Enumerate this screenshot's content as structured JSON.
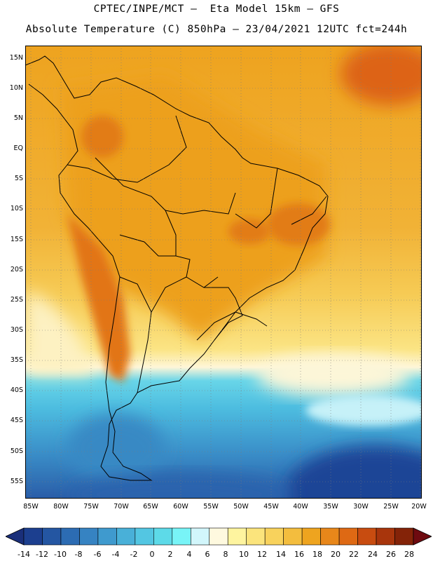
{
  "header": {
    "title_line1": "CPTEC/INPE/MCT –  Eta Model 15km – GFS",
    "title_line2": "Absolute Temperature (C) 850hPa – 23/04/2021 12UTC fct=244h"
  },
  "map": {
    "region": "South America",
    "variable": "Absolute Temperature (C)",
    "level": "850hPa",
    "latitude_labels": [
      "15N",
      "10N",
      "5N",
      "EQ",
      "5S",
      "10S",
      "15S",
      "20S",
      "25S",
      "30S",
      "35S",
      "40S",
      "45S",
      "50S",
      "55S"
    ],
    "longitude_labels": [
      "85W",
      "80W",
      "75W",
      "70W",
      "65W",
      "60W",
      "55W",
      "50W",
      "45W",
      "40W",
      "35W",
      "30W",
      "25W",
      "20W"
    ]
  },
  "colorbar": {
    "tick_labels": [
      "-14",
      "-12",
      "-10",
      "-8",
      "-6",
      "-4",
      "-2",
      "0",
      "2",
      "4",
      "6",
      "8",
      "10",
      "12",
      "14",
      "16",
      "18",
      "20",
      "22",
      "24",
      "26",
      "28"
    ],
    "colors": [
      "#1c3f8f",
      "#2456a2",
      "#2c6cb3",
      "#3683c2",
      "#3f9ace",
      "#49b0d8",
      "#53c6e2",
      "#5ddae8",
      "#78f4f7",
      "#d2f6fb",
      "#fef9df",
      "#fef49f",
      "#fbe47c",
      "#f8d25c",
      "#f3bd3e",
      "#eea41f",
      "#e8871a",
      "#de6914",
      "#c84c10",
      "#a8350c",
      "#842308"
    ]
  }
}
